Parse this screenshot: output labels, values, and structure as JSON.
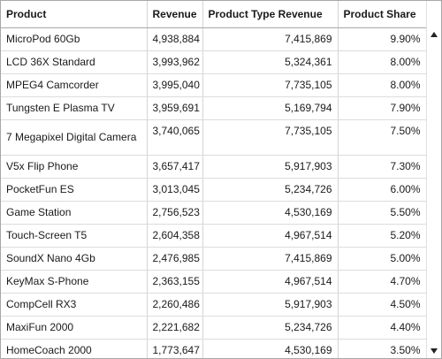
{
  "table": {
    "columns": [
      "Product",
      "Revenue",
      "Product Type Revenue",
      "Product Share"
    ],
    "rows": [
      {
        "product": "MicroPod 60Gb",
        "revenue": "4,938,884",
        "type_revenue": "7,415,869",
        "share": "9.90%"
      },
      {
        "product": "LCD 36X Standard",
        "revenue": "3,993,962",
        "type_revenue": "5,324,361",
        "share": "8.00%"
      },
      {
        "product": "MPEG4 Camcorder",
        "revenue": "3,995,040",
        "type_revenue": "7,735,105",
        "share": "8.00%"
      },
      {
        "product": "Tungsten E Plasma TV",
        "revenue": "3,959,691",
        "type_revenue": "5,169,794",
        "share": "7.90%"
      },
      {
        "product": "7 Megapixel Digital Camera",
        "revenue": "3,740,065",
        "type_revenue": "7,735,105",
        "share": "7.50%"
      },
      {
        "product": "V5x Flip Phone",
        "revenue": "3,657,417",
        "type_revenue": "5,917,903",
        "share": "7.30%"
      },
      {
        "product": "PocketFun ES",
        "revenue": "3,013,045",
        "type_revenue": "5,234,726",
        "share": "6.00%"
      },
      {
        "product": "Game Station",
        "revenue": "2,756,523",
        "type_revenue": "4,530,169",
        "share": "5.50%"
      },
      {
        "product": "Touch-Screen T5",
        "revenue": "2,604,358",
        "type_revenue": "4,967,514",
        "share": "5.20%"
      },
      {
        "product": "SoundX Nano 4Gb",
        "revenue": "2,476,985",
        "type_revenue": "7,415,869",
        "share": "5.00%"
      },
      {
        "product": "KeyMax S-Phone",
        "revenue": "2,363,155",
        "type_revenue": "4,967,514",
        "share": "4.70%"
      },
      {
        "product": "CompCell RX3",
        "revenue": "2,260,486",
        "type_revenue": "5,917,903",
        "share": "4.50%"
      },
      {
        "product": "MaxiFun 2000",
        "revenue": "2,221,682",
        "type_revenue": "5,234,726",
        "share": "4.40%"
      },
      {
        "product": "HomeCoach 2000",
        "revenue": "1,773,647",
        "type_revenue": "4,530,169",
        "share": "3.50%"
      }
    ]
  },
  "scrollbar": {
    "up_icon": "triangle-up-icon",
    "down_icon": "triangle-down-icon"
  }
}
